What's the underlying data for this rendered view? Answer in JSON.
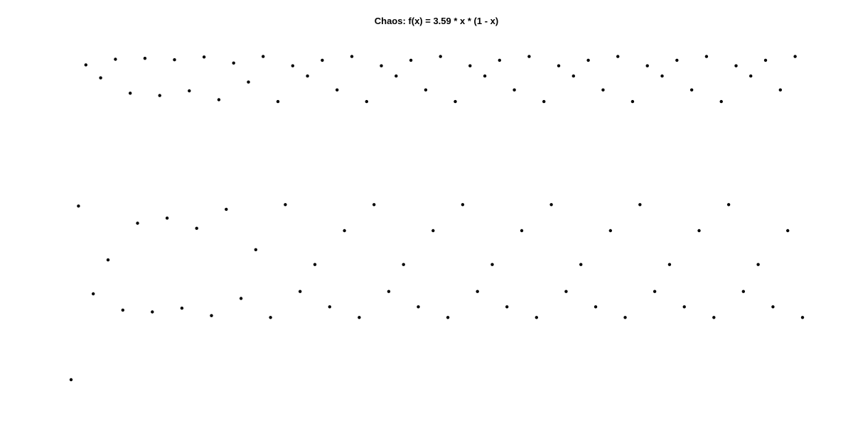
{
  "chart_data": {
    "type": "scatter",
    "title": "Chaos: f(x) = 3.59 * x * (1 - x)",
    "xlabel": "",
    "ylabel": "",
    "grid": false,
    "axes_visible": false,
    "marker_color": "#000000",
    "series": [
      {
        "y": [
          0.2,
          0.574,
          0.878,
          0.385,
          0.85,
          0.458,
          0.89,
          0.35,
          0.817,
          0.537,
          0.892,
          0.346,
          0.812,
          0.548,
          0.889,
          0.354,
          0.822,
          0.526,
          0.895,
          0.338,
          0.803,
          0.567,
          0.882,
          0.375,
          0.841,
          0.48,
          0.896,
          0.334,
          0.799,
          0.577,
          0.876,
          0.39,
          0.854,
          0.448,
          0.888,
          0.357,
          0.824,
          0.521,
          0.896,
          0.334,
          0.799,
          0.577,
          0.876,
          0.39,
          0.854,
          0.448,
          0.888,
          0.357,
          0.824,
          0.521,
          0.896,
          0.334,
          0.799,
          0.577,
          0.876,
          0.39,
          0.854,
          0.448,
          0.888,
          0.357,
          0.824,
          0.521,
          0.896,
          0.334,
          0.799,
          0.577,
          0.876,
          0.39,
          0.854,
          0.448,
          0.888,
          0.357,
          0.824,
          0.521,
          0.896,
          0.334,
          0.799,
          0.577,
          0.876,
          0.39,
          0.854,
          0.448,
          0.888,
          0.357,
          0.824,
          0.521,
          0.896,
          0.334,
          0.799,
          0.577,
          0.876,
          0.39,
          0.854,
          0.448,
          0.888,
          0.357,
          0.824,
          0.521,
          0.896,
          0.334,
          0.799,
          0.577,
          0.876,
          0.39,
          0.854,
          0.448,
          0.888,
          0.357,
          0.824,
          0.521,
          0.896,
          0.334,
          0.799,
          0.577,
          0.876,
          0.39,
          0.854,
          0.448,
          0.888,
          0.357,
          0.824,
          0.521,
          0.896,
          0.334,
          0.799,
          0.577,
          0.876,
          0.39,
          0.854,
          0.448,
          0.888,
          0.357,
          0.824,
          0.521,
          0.896,
          0.334,
          0.799,
          0.577,
          0.876,
          0.39,
          0.854,
          0.448,
          0.888,
          0.357,
          0.824,
          0.521,
          0.896,
          0.334,
          0.799,
          0.577,
          0.876,
          0.39,
          0.854,
          0.448,
          0.888,
          0.357,
          0.824,
          0.521,
          0.896,
          0.334,
          0.799,
          0.577,
          0.876,
          0.39,
          0.854,
          0.448,
          0.888,
          0.357,
          0.824,
          0.521,
          0.896,
          0.334,
          0.799,
          0.577,
          0.876,
          0.39,
          0.854,
          0.448,
          0.888,
          0.357,
          0.824,
          0.521,
          0.896,
          0.334,
          0.799,
          0.577,
          0.876,
          0.39,
          0.854,
          0.448,
          0.888,
          0.357,
          0.824,
          0.521,
          0.896,
          0.334,
          0.799,
          0.577,
          0.876,
          0.39,
          0.854,
          0.448,
          0.888,
          0.357,
          0.824,
          0.521,
          0.896,
          0.334,
          0.799
        ]
      }
    ]
  }
}
